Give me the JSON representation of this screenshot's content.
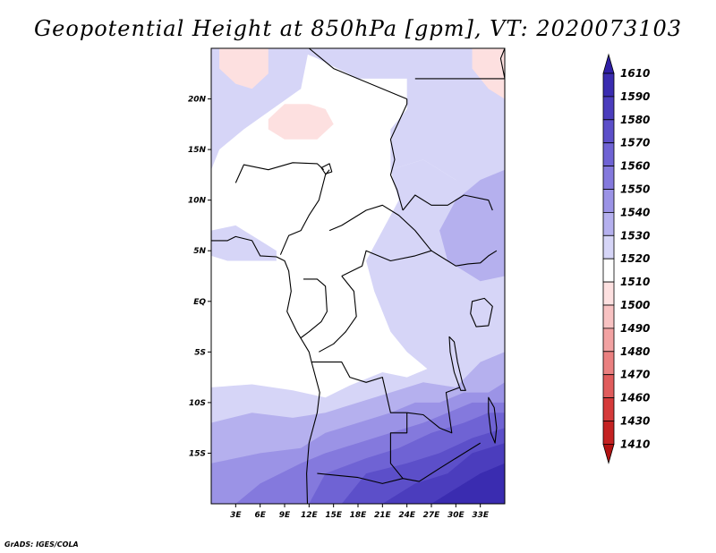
{
  "title": "Geopotential Height at 850hPa [gpm], VT: 2020073103",
  "credit": "GrADS: IGES/COLA",
  "map": {
    "lon_range": [
      0,
      36
    ],
    "lat_range": [
      -20,
      25
    ],
    "lat_ticks": [
      {
        "lat": 20,
        "label": "20N"
      },
      {
        "lat": 15,
        "label": "15N"
      },
      {
        "lat": 10,
        "label": "10N"
      },
      {
        "lat": 5,
        "label": "5N"
      },
      {
        "lat": 0,
        "label": "EQ"
      },
      {
        "lat": -5,
        "label": "5S"
      },
      {
        "lat": -10,
        "label": "10S"
      },
      {
        "lat": -15,
        "label": "15S"
      }
    ],
    "lon_ticks": [
      {
        "lon": 3,
        "label": "3E"
      },
      {
        "lon": 6,
        "label": "6E"
      },
      {
        "lon": 9,
        "label": "9E"
      },
      {
        "lon": 12,
        "label": "12E"
      },
      {
        "lon": 15,
        "label": "15E"
      },
      {
        "lon": 18,
        "label": "18E"
      },
      {
        "lon": 21,
        "label": "21E"
      },
      {
        "lon": 24,
        "label": "24E"
      },
      {
        "lon": 27,
        "label": "27E"
      },
      {
        "lon": 30,
        "label": "30E"
      },
      {
        "lon": 33,
        "label": "33E"
      }
    ]
  },
  "colorbar": {
    "levels": [
      1610,
      1590,
      1580,
      1570,
      1560,
      1550,
      1540,
      1530,
      1520,
      1510,
      1500,
      1490,
      1480,
      1470,
      1460,
      1430,
      1410
    ],
    "colors": [
      "#2f1fa6",
      "#3a2cb0",
      "#4b3dbd",
      "#5c4fc9",
      "#6f63d4",
      "#8479dd",
      "#9b93e6",
      "#b5b0ee",
      "#d6d5f7",
      "#ffffff",
      "#fde0e0",
      "#f8c2c2",
      "#f2a2a2",
      "#ea8080",
      "#e05c5c",
      "#d53a3a",
      "#c42222",
      "#b21212"
    ]
  },
  "fields": [
    {
      "name": "height-1530-west-sahel",
      "color": "#d6d5f7",
      "points": [
        [
          0.5,
          25
        ],
        [
          12,
          25
        ],
        [
          11,
          21
        ],
        [
          4,
          17
        ],
        [
          1,
          15
        ],
        [
          0,
          13
        ],
        [
          0,
          25
        ]
      ]
    },
    {
      "name": "height-1530-northeast",
      "color": "#d6d5f7",
      "points": [
        [
          10,
          25
        ],
        [
          36,
          25
        ],
        [
          36,
          12
        ],
        [
          33,
          10
        ],
        [
          30,
          12
        ],
        [
          26,
          14
        ],
        [
          22,
          13
        ],
        [
          22,
          17
        ],
        [
          24,
          19
        ],
        [
          24,
          22
        ],
        [
          18,
          22
        ],
        [
          13,
          24
        ]
      ]
    },
    {
      "name": "height-1530-east-africa",
      "color": "#d6d5f7",
      "points": [
        [
          22,
          13
        ],
        [
          26,
          14
        ],
        [
          30,
          12
        ],
        [
          33,
          11
        ],
        [
          36,
          11
        ],
        [
          36,
          -7
        ],
        [
          30,
          -8
        ],
        [
          27,
          -7
        ],
        [
          24,
          -5
        ],
        [
          22,
          -3
        ],
        [
          20,
          1
        ],
        [
          19,
          4
        ],
        [
          21,
          7
        ],
        [
          23,
          10
        ]
      ]
    },
    {
      "name": "height-1530-west-coast",
      "color": "#d6d5f7",
      "points": [
        [
          0,
          7
        ],
        [
          3,
          7.5
        ],
        [
          6,
          6
        ],
        [
          8,
          5
        ],
        [
          8,
          4
        ],
        [
          2,
          4
        ],
        [
          0,
          4.5
        ]
      ]
    },
    {
      "name": "height-1530-south",
      "color": "#d6d5f7",
      "points": [
        [
          0,
          -8.5
        ],
        [
          5,
          -8.2
        ],
        [
          10,
          -8.8
        ],
        [
          14,
          -9.5
        ],
        [
          17,
          -8.3
        ],
        [
          21,
          -7
        ],
        [
          24,
          -7.5
        ],
        [
          27,
          -6.5
        ],
        [
          30,
          -7.5
        ],
        [
          36,
          -6.5
        ],
        [
          36,
          -20
        ],
        [
          0,
          -20
        ]
      ]
    },
    {
      "name": "height-1540-east",
      "color": "#b5b0ee",
      "points": [
        [
          36,
          13
        ],
        [
          33,
          12
        ],
        [
          30,
          10
        ],
        [
          28,
          7
        ],
        [
          29,
          4
        ],
        [
          33,
          2
        ],
        [
          36,
          2.5
        ]
      ]
    },
    {
      "name": "height-1540-south",
      "color": "#b5b0ee",
      "points": [
        [
          0,
          -12
        ],
        [
          5,
          -11
        ],
        [
          10,
          -11.5
        ],
        [
          14,
          -11
        ],
        [
          18,
          -10
        ],
        [
          22,
          -9
        ],
        [
          26,
          -8
        ],
        [
          30,
          -8.5
        ],
        [
          33,
          -6
        ],
        [
          36,
          -5
        ],
        [
          36,
          -20
        ],
        [
          0,
          -20
        ]
      ]
    },
    {
      "name": "height-1550-south",
      "color": "#9b93e6",
      "points": [
        [
          0,
          -16
        ],
        [
          6,
          -15
        ],
        [
          11,
          -14.5
        ],
        [
          14,
          -13
        ],
        [
          18,
          -12
        ],
        [
          22,
          -11
        ],
        [
          25,
          -10
        ],
        [
          28,
          -10
        ],
        [
          31,
          -9
        ],
        [
          34,
          -9
        ],
        [
          36,
          -8
        ],
        [
          36,
          -20
        ],
        [
          0,
          -20
        ]
      ]
    },
    {
      "name": "height-1560-south",
      "color": "#8479dd",
      "points": [
        [
          3,
          -20
        ],
        [
          6,
          -18
        ],
        [
          11,
          -16
        ],
        [
          14,
          -15
        ],
        [
          18,
          -14
        ],
        [
          22,
          -13
        ],
        [
          26,
          -12
        ],
        [
          29,
          -11
        ],
        [
          32,
          -10
        ],
        [
          36,
          -10
        ],
        [
          36,
          -20
        ]
      ]
    },
    {
      "name": "height-1570-south",
      "color": "#6f63d4",
      "points": [
        [
          12,
          -20
        ],
        [
          14,
          -17
        ],
        [
          19,
          -15.5
        ],
        [
          23,
          -14.5
        ],
        [
          27,
          -13
        ],
        [
          31,
          -12
        ],
        [
          34,
          -11
        ],
        [
          36,
          -11
        ],
        [
          36,
          -20
        ]
      ]
    },
    {
      "name": "height-1580-south",
      "color": "#5c4fc9",
      "points": [
        [
          16,
          -20
        ],
        [
          19,
          -17
        ],
        [
          24,
          -16
        ],
        [
          28,
          -15
        ],
        [
          32,
          -13.5
        ],
        [
          36,
          -12.5
        ],
        [
          36,
          -20
        ]
      ]
    },
    {
      "name": "height-1590-south",
      "color": "#4b3dbd",
      "points": [
        [
          21,
          -20
        ],
        [
          25,
          -18
        ],
        [
          29,
          -17
        ],
        [
          32,
          -15
        ],
        [
          36,
          -14
        ],
        [
          36,
          -20
        ]
      ]
    },
    {
      "name": "height-1610-south",
      "color": "#3a2cb0",
      "points": [
        [
          27,
          -20
        ],
        [
          30,
          -18.5
        ],
        [
          33,
          -17
        ],
        [
          36,
          -16
        ],
        [
          36,
          -20
        ]
      ]
    },
    {
      "name": "height-1510-northwest",
      "color": "#fde0e0",
      "points": [
        [
          1,
          25
        ],
        [
          7,
          25
        ],
        [
          7,
          22.5
        ],
        [
          5,
          21
        ],
        [
          3,
          21.5
        ],
        [
          1,
          23
        ]
      ]
    },
    {
      "name": "height-1510-sahara",
      "color": "#fde0e0",
      "points": [
        [
          7,
          18
        ],
        [
          9,
          19.5
        ],
        [
          12,
          19.5
        ],
        [
          14,
          19
        ],
        [
          15,
          17.5
        ],
        [
          13,
          16
        ],
        [
          9,
          16
        ],
        [
          7,
          17
        ]
      ]
    },
    {
      "name": "height-1510-northeast",
      "color": "#fde0e0",
      "points": [
        [
          32,
          25
        ],
        [
          36,
          25
        ],
        [
          36,
          20
        ],
        [
          34,
          21
        ],
        [
          32,
          23
        ]
      ]
    }
  ],
  "borders": [
    {
      "name": "coastline-west-africa",
      "closed": false,
      "points": [
        [
          0,
          10
        ],
        [
          0,
          6
        ],
        [
          2,
          6
        ],
        [
          3,
          6.4
        ],
        [
          5,
          6
        ],
        [
          6,
          4.5
        ],
        [
          8,
          4.4
        ],
        [
          9,
          4
        ],
        [
          9.5,
          3
        ],
        [
          9.8,
          1
        ],
        [
          9.3,
          -1
        ],
        [
          10.5,
          -3
        ],
        [
          12,
          -5
        ],
        [
          12.3,
          -6
        ],
        [
          13.3,
          -9
        ],
        [
          13,
          -11
        ],
        [
          12,
          -14
        ],
        [
          11.7,
          -17
        ],
        [
          11.8,
          -20
        ]
      ]
    },
    {
      "name": "coastline-east-africa",
      "closed": false,
      "points": [
        [
          36,
          25
        ],
        [
          35.5,
          24
        ],
        [
          36,
          22
        ]
      ]
    },
    {
      "name": "border-niger-nigeria",
      "closed": false,
      "points": [
        [
          3,
          11.7
        ],
        [
          4,
          13.5
        ],
        [
          7,
          13
        ],
        [
          10,
          13.7
        ],
        [
          13,
          13.6
        ],
        [
          13.8,
          13
        ]
      ]
    },
    {
      "name": "border-nigeria-cameroon",
      "closed": false,
      "points": [
        [
          8.5,
          4.6
        ],
        [
          9.5,
          6.5
        ],
        [
          11,
          7
        ],
        [
          12,
          8.5
        ],
        [
          13.2,
          10
        ],
        [
          14,
          12.5
        ],
        [
          14.5,
          13
        ]
      ]
    },
    {
      "name": "border-chad-east",
      "closed": false,
      "points": [
        [
          24,
          20
        ],
        [
          24,
          19.5
        ],
        [
          22,
          16
        ],
        [
          22.5,
          14
        ],
        [
          22,
          12.5
        ],
        [
          22.8,
          11
        ],
        [
          23.5,
          9
        ]
      ]
    },
    {
      "name": "border-libya-sudan",
      "closed": false,
      "points": [
        [
          12,
          25
        ],
        [
          15,
          23
        ],
        [
          24,
          20
        ]
      ]
    },
    {
      "name": "border-egypt-sudan",
      "closed": false,
      "points": [
        [
          25,
          22
        ],
        [
          32,
          22
        ],
        [
          36,
          22
        ]
      ]
    },
    {
      "name": "border-car-drc",
      "closed": false,
      "points": [
        [
          14.5,
          7
        ],
        [
          16,
          7.5
        ],
        [
          18,
          8.5
        ],
        [
          19,
          9
        ],
        [
          21,
          9.5
        ],
        [
          23,
          8.5
        ],
        [
          25,
          7
        ],
        [
          27,
          5
        ],
        [
          25,
          4.5
        ],
        [
          22,
          4
        ],
        [
          19,
          5
        ],
        [
          18.5,
          3.5
        ],
        [
          16,
          2.5
        ]
      ]
    },
    {
      "name": "border-sudan-south",
      "closed": false,
      "points": [
        [
          23.5,
          9
        ],
        [
          25,
          10.5
        ],
        [
          27,
          9.5
        ],
        [
          29,
          9.5
        ],
        [
          31,
          10.5
        ],
        [
          34,
          10
        ],
        [
          34.5,
          9
        ]
      ]
    },
    {
      "name": "border-south-sudan-uganda",
      "closed": false,
      "points": [
        [
          27,
          5
        ],
        [
          28,
          4.5
        ],
        [
          30,
          3.5
        ],
        [
          31.5,
          3.7
        ],
        [
          33,
          3.8
        ],
        [
          34,
          4.5
        ],
        [
          35,
          5
        ]
      ]
    },
    {
      "name": "border-congo-drc",
      "closed": false,
      "points": [
        [
          16,
          2.5
        ],
        [
          17.5,
          1
        ],
        [
          17.8,
          -1.5
        ],
        [
          16.5,
          -3
        ],
        [
          15,
          -4.2
        ],
        [
          13.2,
          -5
        ]
      ]
    },
    {
      "name": "border-gabon",
      "closed": false,
      "points": [
        [
          11.3,
          2.2
        ],
        [
          13,
          2.2
        ],
        [
          14,
          1.5
        ],
        [
          14.2,
          -1
        ],
        [
          13.5,
          -2
        ],
        [
          12,
          -3
        ],
        [
          11,
          -3.6
        ]
      ]
    },
    {
      "name": "border-angola-drc",
      "closed": false,
      "points": [
        [
          12.3,
          -6
        ],
        [
          16,
          -6
        ],
        [
          17,
          -7.5
        ],
        [
          19,
          -8
        ],
        [
          21,
          -7.5
        ],
        [
          22,
          -11
        ],
        [
          24,
          -11
        ]
      ]
    },
    {
      "name": "border-angola-zambia",
      "closed": false,
      "points": [
        [
          24,
          -11
        ],
        [
          24,
          -13
        ],
        [
          22,
          -13
        ],
        [
          22,
          -16
        ],
        [
          23.5,
          -17.5
        ],
        [
          21,
          -18
        ],
        [
          18,
          -17.4
        ],
        [
          13,
          -17
        ]
      ]
    },
    {
      "name": "border-zambia-drc",
      "closed": false,
      "points": [
        [
          24,
          -11
        ],
        [
          26,
          -11.2
        ],
        [
          28,
          -12.5
        ],
        [
          29.5,
          -13
        ],
        [
          28.8,
          -9
        ],
        [
          30.5,
          -8.5
        ]
      ]
    },
    {
      "name": "border-zambia-south",
      "closed": false,
      "points": [
        [
          23.5,
          -17.5
        ],
        [
          25.5,
          -17.8
        ],
        [
          28,
          -16.5
        ],
        [
          30,
          -15.5
        ],
        [
          33,
          -14
        ]
      ]
    },
    {
      "name": "lake-tanganyika",
      "closed": true,
      "points": [
        [
          29.2,
          -3.5
        ],
        [
          29.8,
          -4
        ],
        [
          30.2,
          -6
        ],
        [
          30.8,
          -8
        ],
        [
          31.2,
          -8.8
        ],
        [
          30.6,
          -8.8
        ],
        [
          29.8,
          -7
        ],
        [
          29.3,
          -5
        ]
      ]
    },
    {
      "name": "lake-victoria",
      "closed": true,
      "points": [
        [
          32,
          0
        ],
        [
          33.5,
          0.3
        ],
        [
          34.5,
          -0.5
        ],
        [
          34,
          -2.4
        ],
        [
          32.5,
          -2.5
        ],
        [
          31.8,
          -1.2
        ]
      ]
    },
    {
      "name": "lake-malawi",
      "closed": true,
      "points": [
        [
          34,
          -9.5
        ],
        [
          34.7,
          -10.5
        ],
        [
          35,
          -12.5
        ],
        [
          34.8,
          -14
        ],
        [
          34.3,
          -13
        ],
        [
          34,
          -11
        ]
      ]
    },
    {
      "name": "lake-chad",
      "closed": true,
      "points": [
        [
          13.5,
          13.2
        ],
        [
          14.5,
          13.6
        ],
        [
          14.8,
          12.8
        ],
        [
          14,
          12.6
        ]
      ]
    }
  ]
}
